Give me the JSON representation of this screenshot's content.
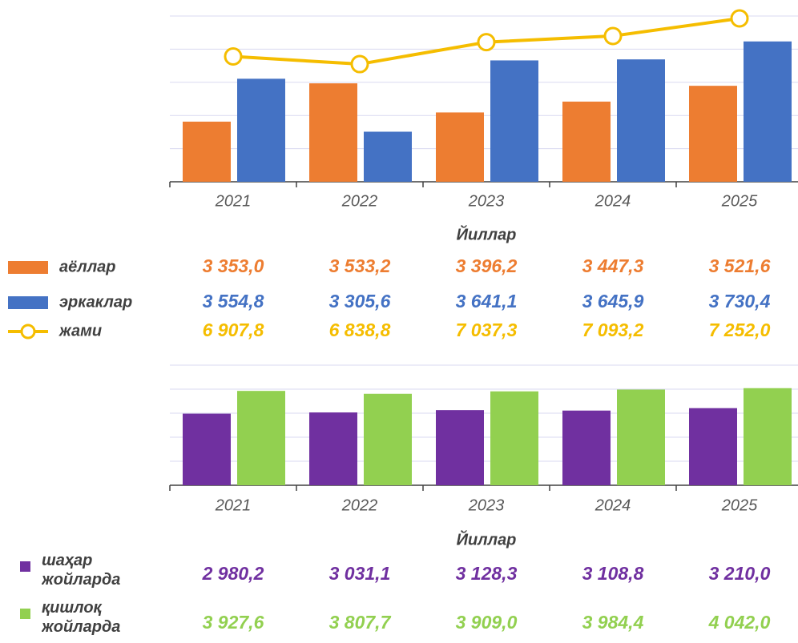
{
  "chart_data": [
    {
      "type": "bar",
      "categories": [
        "2021",
        "2022",
        "2023",
        "2024",
        "2025"
      ],
      "xlabel": "Йиллар",
      "ylim": [
        3070,
        3850
      ],
      "y2lim": [
        5774,
        7274
      ],
      "series": [
        {
          "name": "аёллар",
          "color": "#ed7d31",
          "values": [
            3353.0,
            3533.2,
            3396.2,
            3447.3,
            3521.6
          ],
          "value_labels": [
            "3 353,0",
            "3 533,2",
            "3 396,2",
            "3 447,3",
            "3 521,6"
          ]
        },
        {
          "name": "эркаклар",
          "color": "#4472c4",
          "values": [
            3554.8,
            3305.6,
            3641.1,
            3645.9,
            3730.4
          ],
          "value_labels": [
            "3 554,8",
            "3 305,6",
            "3 641,1",
            "3 645,9",
            "3 730,4"
          ]
        },
        {
          "name": "жами",
          "type": "line",
          "axis": "y2",
          "color": "#f5bd00",
          "values": [
            6907.8,
            6838.8,
            7037.3,
            7093.2,
            7252.0
          ],
          "value_labels": [
            "6 907,8",
            "6 838,8",
            "7 037,3",
            "7 093,2",
            "7 252,0"
          ]
        }
      ]
    },
    {
      "type": "bar",
      "categories": [
        "2021",
        "2022",
        "2023",
        "2024",
        "2025"
      ],
      "xlabel": "Йиллар",
      "ylim": [
        0,
        5000
      ],
      "series": [
        {
          "name": "шаҳар жойларда",
          "color": "#7030a0",
          "values": [
            2980.2,
            3031.1,
            3128.3,
            3108.8,
            3210.0
          ],
          "value_labels": [
            "2 980,2",
            "3 031,1",
            "3 128,3",
            "3 108,8",
            "3 210,0"
          ]
        },
        {
          "name": "қишлоқ жойларда",
          "color": "#92d050",
          "values": [
            3927.6,
            3807.7,
            3909.0,
            3984.4,
            4042.0
          ],
          "value_labels": [
            "3 927,6",
            "3 807,7",
            "3 909,0",
            "3 984,4",
            "4 042,0"
          ]
        }
      ]
    }
  ]
}
